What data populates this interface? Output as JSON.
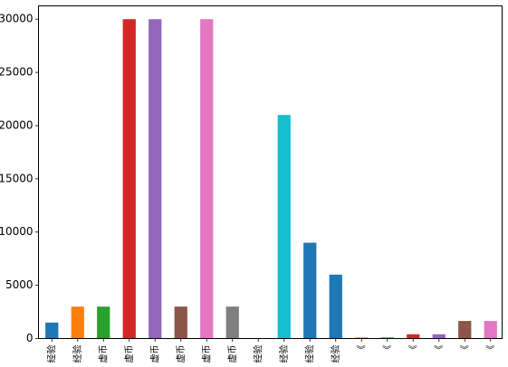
{
  "chart_data": {
    "type": "bar",
    "categories": [
      "经验",
      "经验",
      "虚币",
      "虚币",
      "虚币",
      "虚币",
      "虚币",
      "虚币",
      "经验",
      "经验",
      "经验",
      "经验",
      "《",
      "《",
      "《",
      "《",
      "《",
      "《"
    ],
    "values": [
      1500,
      3000,
      3000,
      30000,
      30000,
      3000,
      30000,
      3000,
      0,
      21000,
      9000,
      6000,
      100,
      100,
      400,
      400,
      1650,
      1650
    ],
    "colors": [
      "#1f77b4",
      "#ff7f0e",
      "#2ca02c",
      "#d62728",
      "#9467bd",
      "#8c564b",
      "#e377c2",
      "#7f7f7f",
      "#bcbd22",
      "#17becf",
      "#1f77b4",
      "#1f77b4",
      "#ff7f0e",
      "#2ca02c",
      "#d62728",
      "#9467bd",
      "#8c564b",
      "#e377c2"
    ],
    "title": "",
    "xlabel": "",
    "ylabel": "",
    "ylim": [
      0,
      30000
    ],
    "yticks": [
      0,
      5000,
      10000,
      15000,
      20000,
      25000,
      30000
    ],
    "yticklabels": [
      "0",
      "5000",
      "10000",
      "15000",
      "20000",
      "25000",
      "30000"
    ],
    "grid": false,
    "legend": "none"
  }
}
